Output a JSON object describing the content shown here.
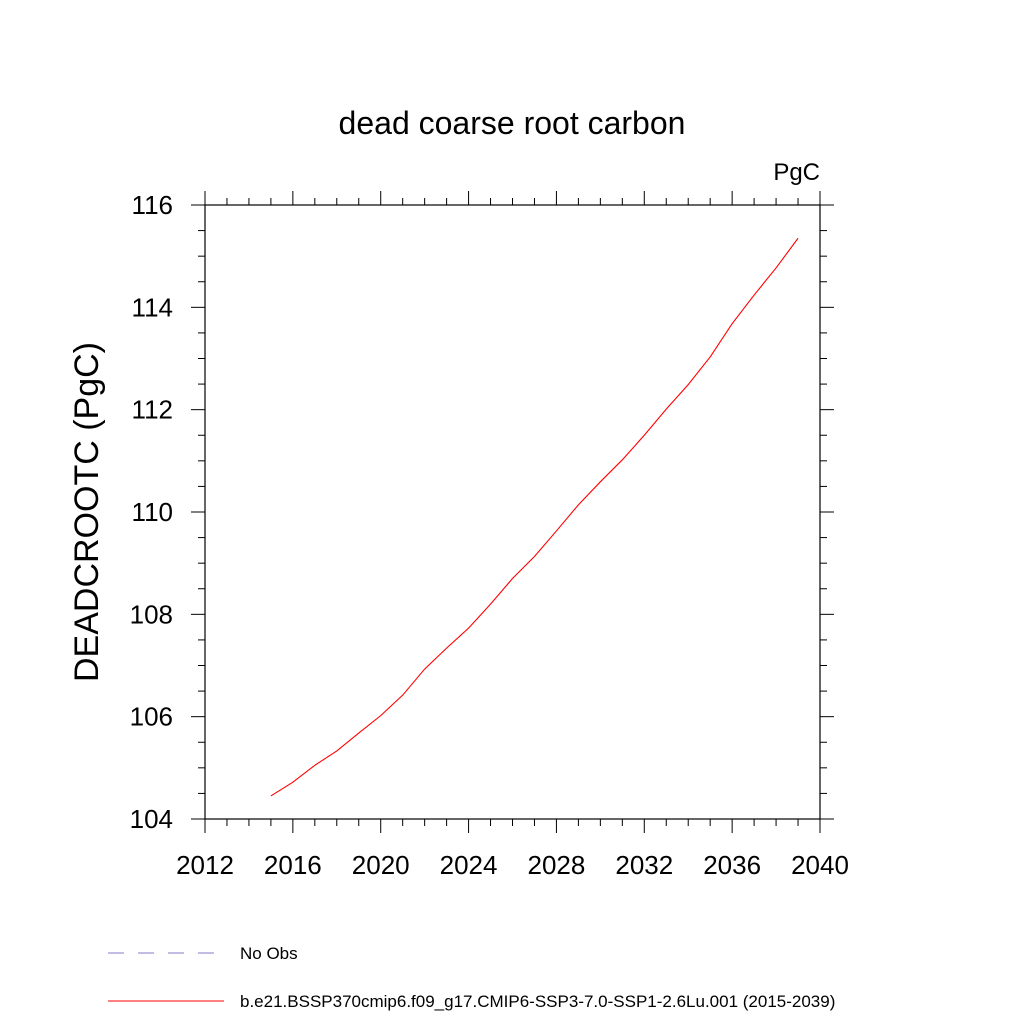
{
  "chart_data": {
    "type": "line",
    "title": "dead coarse root carbon",
    "units_label": "PgC",
    "ylabel": "DEADCROOTC  (PgC)",
    "xlabel": "",
    "xlim": [
      2012,
      2040
    ],
    "ylim": [
      104,
      116
    ],
    "x_ticks": [
      2012,
      2016,
      2020,
      2024,
      2028,
      2032,
      2036,
      2040
    ],
    "y_ticks": [
      104,
      106,
      108,
      110,
      112,
      114,
      116
    ],
    "grid": false,
    "legend_position": "bottom",
    "series": [
      {
        "name": "No Obs",
        "color": "#8878c8",
        "style": "dashed",
        "x": [],
        "y": []
      },
      {
        "name": "b.e21.BSSP370cmip6.f09_g17.CMIP6-SSP3-7.0-SSP1-2.6Lu.001 (2015-2039)",
        "color": "#ff0000",
        "style": "solid",
        "x": [
          2015,
          2016,
          2017,
          2018,
          2019,
          2020,
          2021,
          2022,
          2023,
          2024,
          2025,
          2026,
          2027,
          2028,
          2029,
          2030,
          2031,
          2032,
          2033,
          2034,
          2035,
          2036,
          2037,
          2038,
          2039
        ],
        "y": [
          104.45,
          104.72,
          105.05,
          105.33,
          105.68,
          106.02,
          106.42,
          106.93,
          107.34,
          107.73,
          108.2,
          108.7,
          109.13,
          109.63,
          110.14,
          110.59,
          111.02,
          111.5,
          112.01,
          112.49,
          113.03,
          113.68,
          114.24,
          114.77,
          115.35
        ]
      }
    ]
  }
}
